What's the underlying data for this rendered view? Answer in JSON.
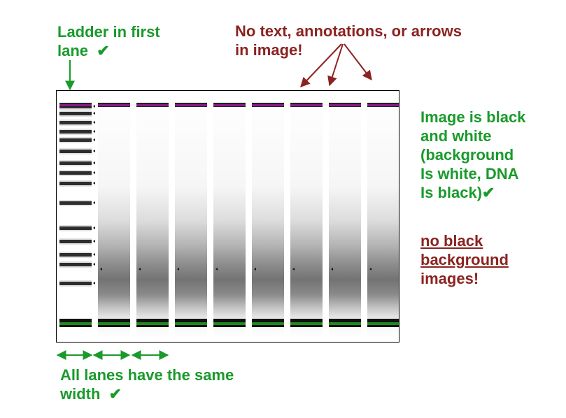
{
  "colors": {
    "green": "#1a9a2c",
    "red": "#8b2320",
    "marker_upper": "#8a1a8a",
    "marker_lower": "#1c8a1c",
    "background": "#ffffff",
    "band": "#000000"
  },
  "notes": {
    "ladder": {
      "line1": "Ladder in first",
      "line2": "lane",
      "check": "✔"
    },
    "no_text": {
      "line1": "No text, annotations, or arrows",
      "line2": "in image!"
    },
    "black_white": {
      "line1": "Image is black",
      "line2": "and white",
      "line3": "(background",
      "line4": "Is white, DNA",
      "line5": "Is black)",
      "check": "✔"
    },
    "no_black": {
      "line1": "no black",
      "line2": "background",
      "line3": "images!"
    },
    "width": {
      "line1": "All lanes have the same",
      "line2": "width",
      "check": "✔"
    }
  },
  "gel": {
    "lane_count": 9,
    "ladder_lane": 1,
    "upper_marker_color": "purple",
    "lower_marker_color": "green",
    "background": "white",
    "dna": "black"
  }
}
